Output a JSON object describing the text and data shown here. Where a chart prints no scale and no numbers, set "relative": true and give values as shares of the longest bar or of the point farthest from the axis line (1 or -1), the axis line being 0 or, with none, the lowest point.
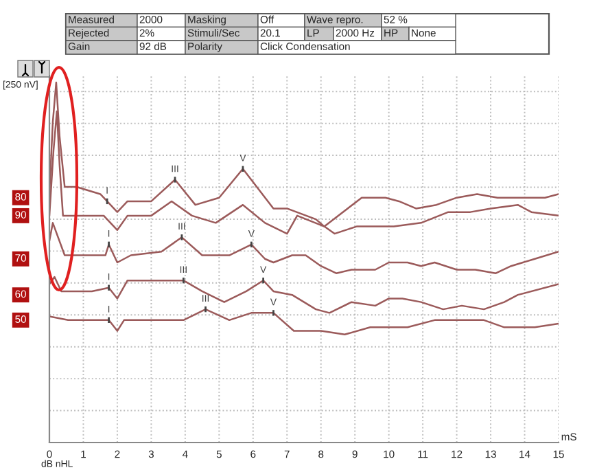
{
  "chart_data": {
    "type": "line",
    "relative": true,
    "xlabel": "mS",
    "xlim": [
      0,
      15
    ],
    "xticks": [
      0,
      1,
      2,
      3,
      4,
      5,
      6,
      7,
      8,
      9,
      10,
      11,
      12,
      13,
      14,
      15
    ],
    "grid": true,
    "legend": false,
    "marker": "none",
    "line_style": "solid",
    "series": [
      {
        "name": "80",
        "color": "#9b5a5a",
        "x": [
          0,
          0.1,
          0.2,
          0.3,
          0.45,
          0.8,
          1.5,
          2.0,
          2.3,
          3.0,
          3.7,
          4.3,
          5.0,
          5.7,
          6.6,
          7.0,
          7.85,
          8.1,
          9.2,
          9.9,
          10.3,
          10.8,
          11.4,
          12.0,
          12.6,
          13.2,
          13.8,
          14.6,
          15
        ],
        "values": [
          0.69,
          0.89,
          1.0,
          0.85,
          0.71,
          0.71,
          0.69,
          0.64,
          0.67,
          0.67,
          0.73,
          0.66,
          0.68,
          0.76,
          0.65,
          0.65,
          0.62,
          0.6,
          0.68,
          0.68,
          0.67,
          0.65,
          0.66,
          0.68,
          0.69,
          0.68,
          0.68,
          0.68,
          0.69
        ]
      },
      {
        "name": "90",
        "color": "#9b5a5a",
        "x": [
          0,
          0.12,
          0.22,
          0.3,
          0.4,
          1.6,
          2.0,
          2.3,
          3.0,
          3.6,
          4.2,
          4.9,
          5.7,
          6.35,
          7.0,
          7.3,
          8.1,
          8.4,
          9.05,
          9.9,
          10.15,
          10.95,
          11.75,
          12.4,
          13.0,
          13.8,
          14.2,
          15
        ],
        "values": [
          0.63,
          0.81,
          0.92,
          0.77,
          0.63,
          0.63,
          0.59,
          0.63,
          0.63,
          0.67,
          0.63,
          0.61,
          0.66,
          0.61,
          0.58,
          0.63,
          0.6,
          0.58,
          0.6,
          0.6,
          0.6,
          0.61,
          0.64,
          0.64,
          0.65,
          0.66,
          0.64,
          0.63
        ]
      },
      {
        "name": "70",
        "color": "#9b5a5a",
        "x": [
          0,
          0.1,
          0.45,
          1.65,
          1.75,
          2.0,
          2.4,
          3.3,
          3.9,
          4.5,
          5.3,
          5.95,
          6.35,
          6.6,
          7.15,
          7.55,
          8.0,
          8.45,
          8.9,
          9.6,
          10.0,
          10.55,
          10.95,
          11.35,
          12.0,
          12.55,
          13.15,
          13.6,
          14.3,
          15
        ],
        "values": [
          0.56,
          0.61,
          0.52,
          0.52,
          0.55,
          0.5,
          0.52,
          0.53,
          0.57,
          0.52,
          0.52,
          0.55,
          0.51,
          0.5,
          0.52,
          0.52,
          0.49,
          0.47,
          0.48,
          0.48,
          0.5,
          0.5,
          0.49,
          0.5,
          0.48,
          0.48,
          0.47,
          0.49,
          0.51,
          0.53
        ]
      },
      {
        "name": "60",
        "color": "#9b5a5a",
        "x": [
          0,
          0.15,
          0.35,
          1.25,
          1.75,
          2.0,
          2.3,
          3.0,
          3.95,
          4.5,
          5.15,
          5.8,
          6.3,
          6.6,
          7.15,
          7.85,
          8.25,
          8.9,
          9.6,
          10.0,
          10.4,
          10.95,
          11.6,
          12.15,
          12.8,
          13.4,
          13.8,
          15
        ],
        "values": [
          0.44,
          0.46,
          0.42,
          0.42,
          0.43,
          0.4,
          0.45,
          0.45,
          0.45,
          0.42,
          0.39,
          0.42,
          0.45,
          0.42,
          0.41,
          0.37,
          0.36,
          0.39,
          0.38,
          0.4,
          0.4,
          0.39,
          0.37,
          0.38,
          0.37,
          0.39,
          0.41,
          0.44
        ]
      },
      {
        "name": "50",
        "color": "#9b5a5a",
        "x": [
          0,
          0.55,
          1.25,
          1.75,
          2.0,
          2.2,
          3.0,
          3.95,
          4.6,
          5.3,
          5.95,
          6.6,
          7.2,
          8.0,
          8.7,
          9.45,
          10.0,
          10.55,
          11.35,
          12.0,
          12.8,
          13.4,
          14.3,
          15
        ],
        "values": [
          0.35,
          0.34,
          0.34,
          0.34,
          0.31,
          0.34,
          0.34,
          0.34,
          0.37,
          0.34,
          0.36,
          0.36,
          0.31,
          0.31,
          0.3,
          0.32,
          0.32,
          0.32,
          0.34,
          0.34,
          0.34,
          0.32,
          0.32,
          0.33
        ]
      }
    ],
    "annotations": [
      "Measured",
      "2000",
      "Masking",
      "Off",
      "Wave repro.",
      "52 %",
      "Rejected",
      "2%",
      "Stimuli/Sec",
      "20.1",
      "LP",
      "2000 Hz",
      "HP",
      "None",
      "Gain",
      "92 dB",
      "Polarity",
      "Click Condensation",
      "[250 nV]",
      "dB nHL",
      {
        "text": "I",
        "x": 1.7,
        "y": 0.67
      },
      {
        "text": "III",
        "x": 3.7,
        "y": 0.73
      },
      {
        "text": "V",
        "x": 5.7,
        "y": 0.76
      },
      {
        "text": "I",
        "x": 1.75,
        "y": 0.55
      },
      {
        "text": "III",
        "x": 3.9,
        "y": 0.57
      },
      {
        "text": "V",
        "x": 5.95,
        "y": 0.55
      },
      {
        "text": "I",
        "x": 1.75,
        "y": 0.43
      },
      {
        "text": "III",
        "x": 3.95,
        "y": 0.45
      },
      {
        "text": "V",
        "x": 6.3,
        "y": 0.45
      },
      {
        "text": "I",
        "x": 1.75,
        "y": 0.34
      },
      {
        "text": "III",
        "x": 4.6,
        "y": 0.37
      },
      {
        "text": "V",
        "x": 6.6,
        "y": 0.36
      }
    ]
  }
}
